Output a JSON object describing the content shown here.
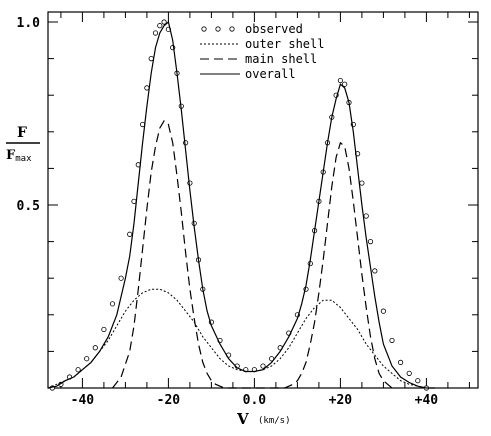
{
  "chart_data": {
    "type": "line",
    "title": "",
    "xlabel": "V",
    "xunit": "(km/s)",
    "ylabel_num": "F",
    "ylabel_den": "F",
    "ylabel_den_sub": "max",
    "xlim": [
      -48,
      52
    ],
    "ylim": [
      0.0,
      1.0
    ],
    "x_ticks": [
      {
        "value": -40,
        "label": "-40"
      },
      {
        "value": -20,
        "label": "-20"
      },
      {
        "value": 0,
        "label": "0.0"
      },
      {
        "value": 20,
        "label": "+20"
      },
      {
        "value": 40,
        "label": "+40"
      }
    ],
    "y_ticks": [
      {
        "value": 1.0,
        "label": "1.0"
      },
      {
        "value": 0.5,
        "label": "0.5"
      }
    ],
    "legend_position": "top-center",
    "series": [
      {
        "name": "observed",
        "style": "circles",
        "x": [
          -47,
          -45,
          -43,
          -41,
          -39,
          -37,
          -35,
          -33,
          -31,
          -29,
          -28,
          -27,
          -26,
          -25,
          -24,
          -23,
          -22,
          -21,
          -20,
          -19,
          -18,
          -17,
          -16,
          -15,
          -14,
          -13,
          -12,
          -10,
          -8,
          -6,
          -4,
          -2,
          0,
          2,
          4,
          6,
          8,
          10,
          12,
          13,
          14,
          15,
          16,
          17,
          18,
          19,
          20,
          21,
          22,
          23,
          24,
          25,
          26,
          27,
          28,
          30,
          32,
          34,
          36,
          38,
          40
        ],
        "y": [
          0.0,
          0.01,
          0.03,
          0.05,
          0.08,
          0.11,
          0.16,
          0.23,
          0.3,
          0.42,
          0.51,
          0.61,
          0.72,
          0.82,
          0.9,
          0.97,
          0.99,
          1.0,
          0.98,
          0.93,
          0.86,
          0.77,
          0.67,
          0.56,
          0.45,
          0.35,
          0.27,
          0.18,
          0.13,
          0.09,
          0.06,
          0.05,
          0.05,
          0.06,
          0.08,
          0.11,
          0.15,
          0.2,
          0.27,
          0.34,
          0.43,
          0.51,
          0.59,
          0.67,
          0.74,
          0.8,
          0.84,
          0.83,
          0.78,
          0.72,
          0.64,
          0.56,
          0.47,
          0.4,
          0.32,
          0.21,
          0.13,
          0.07,
          0.04,
          0.02,
          0.0
        ]
      },
      {
        "name": "outer shell",
        "style": "dotted",
        "x": [
          -48,
          -46,
          -44,
          -42,
          -40,
          -38,
          -36,
          -34,
          -32,
          -30,
          -28,
          -26,
          -24,
          -22,
          -20,
          -18,
          -16,
          -14,
          -12,
          -10,
          -8,
          -6,
          -4,
          -2,
          0,
          2,
          4,
          6,
          8,
          10,
          12,
          14,
          16,
          18,
          20,
          22,
          24,
          26,
          28,
          30,
          32,
          34,
          36,
          38,
          40,
          42
        ],
        "y": [
          0.0,
          0.01,
          0.02,
          0.03,
          0.05,
          0.07,
          0.1,
          0.13,
          0.17,
          0.21,
          0.24,
          0.26,
          0.27,
          0.27,
          0.26,
          0.24,
          0.21,
          0.18,
          0.14,
          0.11,
          0.08,
          0.06,
          0.05,
          0.045,
          0.045,
          0.05,
          0.06,
          0.08,
          0.11,
          0.15,
          0.19,
          0.22,
          0.24,
          0.24,
          0.22,
          0.19,
          0.16,
          0.12,
          0.09,
          0.06,
          0.04,
          0.02,
          0.01,
          0.005,
          0.0,
          0.0
        ]
      },
      {
        "name": "main shell",
        "style": "dashed",
        "x": [
          -33,
          -31,
          -29,
          -28,
          -27,
          -26,
          -25,
          -24,
          -23,
          -22,
          -21,
          -20,
          -19,
          -18,
          -17,
          -16,
          -15,
          -14,
          -13,
          -12,
          -11,
          -10,
          -9,
          -8,
          -7,
          7,
          8,
          9,
          10,
          11,
          12,
          13,
          14,
          15,
          16,
          17,
          18,
          19,
          20,
          21,
          22,
          23,
          24,
          25,
          26,
          27,
          28,
          29,
          30,
          32
        ],
        "y": [
          0.0,
          0.03,
          0.1,
          0.17,
          0.27,
          0.38,
          0.49,
          0.59,
          0.66,
          0.71,
          0.73,
          0.72,
          0.67,
          0.58,
          0.48,
          0.37,
          0.27,
          0.19,
          0.12,
          0.07,
          0.04,
          0.02,
          0.01,
          0.005,
          0.0,
          0.0,
          0.005,
          0.01,
          0.02,
          0.04,
          0.07,
          0.12,
          0.18,
          0.26,
          0.35,
          0.45,
          0.55,
          0.63,
          0.67,
          0.66,
          0.6,
          0.51,
          0.41,
          0.31,
          0.22,
          0.14,
          0.08,
          0.04,
          0.02,
          0.0
        ]
      },
      {
        "name": "overall",
        "style": "solid",
        "x": [
          -48,
          -46,
          -44,
          -42,
          -40,
          -38,
          -36,
          -34,
          -32,
          -31,
          -30,
          -29,
          -28,
          -27,
          -26,
          -25,
          -24,
          -23,
          -22,
          -21,
          -20,
          -19,
          -18,
          -17,
          -16,
          -15,
          -14,
          -13,
          -12,
          -11,
          -10,
          -8,
          -6,
          -4,
          -2,
          0,
          2,
          4,
          6,
          8,
          10,
          11,
          12,
          13,
          14,
          15,
          16,
          17,
          18,
          19,
          20,
          21,
          22,
          23,
          24,
          25,
          26,
          27,
          28,
          29,
          30,
          32,
          34,
          36,
          38,
          40,
          42
        ],
        "y": [
          0.0,
          0.005,
          0.02,
          0.03,
          0.05,
          0.07,
          0.1,
          0.14,
          0.2,
          0.25,
          0.3,
          0.36,
          0.45,
          0.56,
          0.67,
          0.77,
          0.86,
          0.93,
          0.97,
          0.99,
          1.0,
          0.95,
          0.86,
          0.76,
          0.65,
          0.54,
          0.44,
          0.35,
          0.27,
          0.21,
          0.17,
          0.12,
          0.08,
          0.055,
          0.045,
          0.045,
          0.05,
          0.07,
          0.1,
          0.14,
          0.19,
          0.23,
          0.28,
          0.35,
          0.43,
          0.51,
          0.59,
          0.67,
          0.74,
          0.79,
          0.83,
          0.82,
          0.78,
          0.7,
          0.6,
          0.5,
          0.41,
          0.33,
          0.25,
          0.18,
          0.12,
          0.06,
          0.03,
          0.015,
          0.005,
          0.0,
          0.0
        ]
      }
    ]
  }
}
